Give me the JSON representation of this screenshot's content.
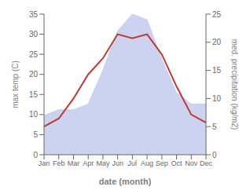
{
  "chart_data": {
    "type": "line",
    "xlabel": "date (month)",
    "ylabel": "max temp (C)",
    "y2label": "med. precipitation (kg/m2)",
    "categories": [
      "Jan",
      "Feb",
      "Mar",
      "Apr",
      "May",
      "Jun",
      "Jul",
      "Aug",
      "Sep",
      "Oct",
      "Nov",
      "Dec"
    ],
    "series": [
      {
        "type": "area",
        "axis": "y2",
        "color": "#c5cef0",
        "values": [
          7,
          8,
          8,
          9,
          15,
          22,
          25,
          24,
          17,
          11,
          9,
          9
        ]
      },
      {
        "type": "line",
        "color": "#c0392b",
        "values": [
          7,
          9,
          14,
          20,
          24,
          30,
          29,
          30,
          25,
          17,
          10,
          8
        ]
      }
    ],
    "ylim": [
      0,
      35
    ],
    "yticks": [
      0,
      5,
      10,
      15,
      20,
      25,
      30,
      35
    ],
    "y2lim": [
      0,
      25
    ],
    "y2ticks": [
      0,
      5,
      10,
      15,
      20,
      25
    ],
    "grid": false
  }
}
